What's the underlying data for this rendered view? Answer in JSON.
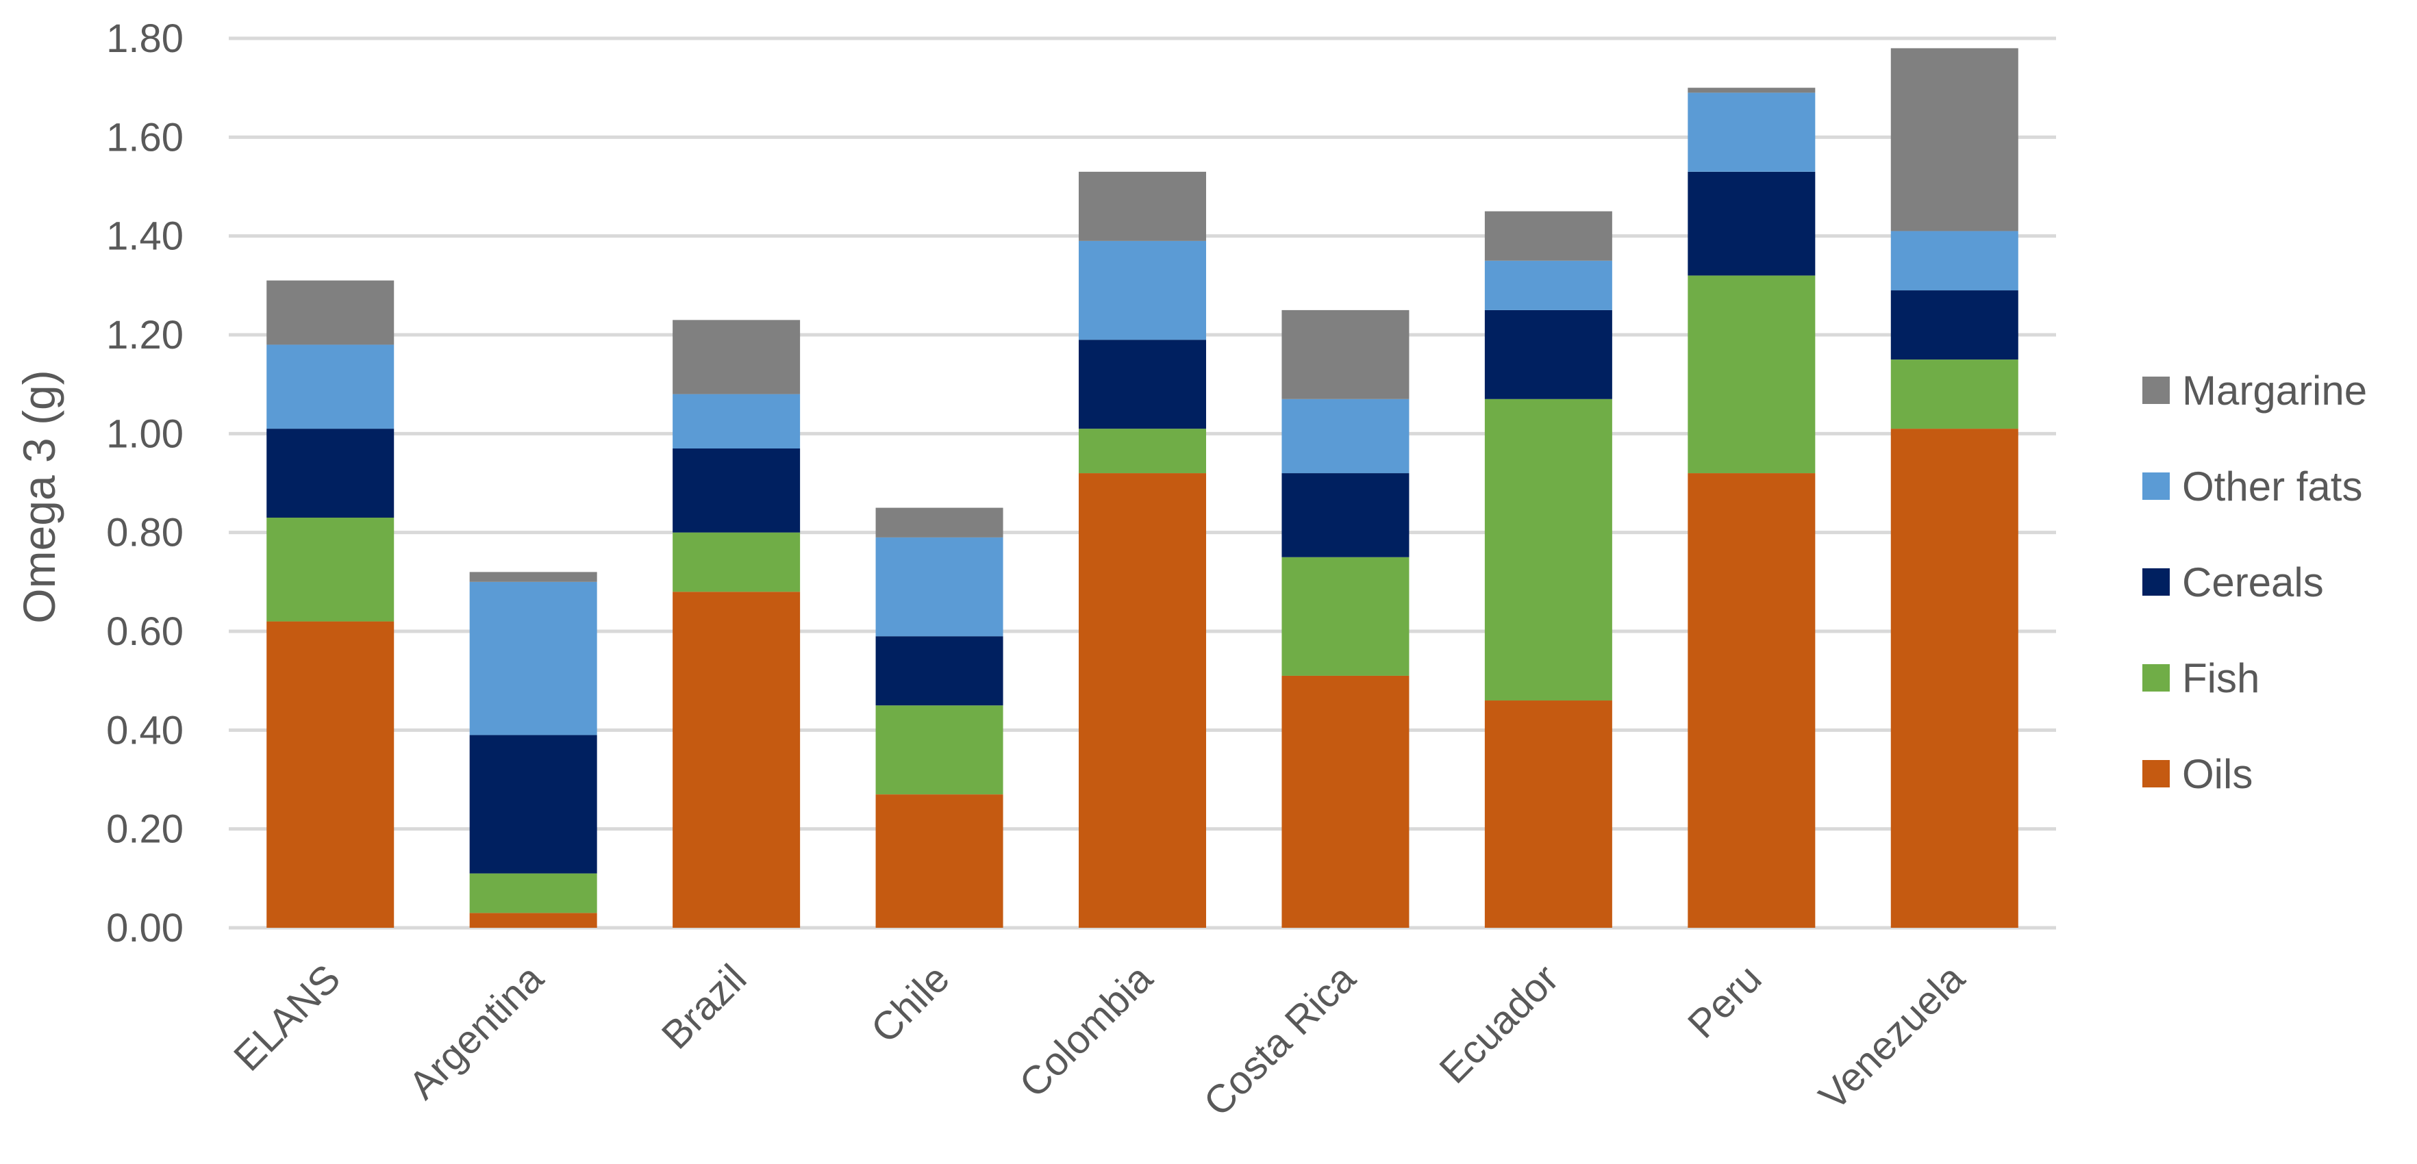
{
  "chart_data": {
    "type": "bar",
    "stacked": true,
    "title": "",
    "xlabel": "",
    "ylabel": "Omega 3 (g)",
    "ylim": [
      0,
      1.8
    ],
    "yticks": [
      "0.00",
      "0.20",
      "0.40",
      "0.60",
      "0.80",
      "1.00",
      "1.20",
      "1.40",
      "1.60",
      "1.80"
    ],
    "grid": true,
    "legend_position": "right",
    "categories": [
      "ELANS",
      "Argentina",
      "Brazil",
      "Chile",
      "Colombia",
      "Costa Rica",
      "Ecuador",
      "Peru",
      "Venezuela"
    ],
    "series": [
      {
        "name": "Oils",
        "color": "#C55A11",
        "values": [
          0.62,
          0.03,
          0.68,
          0.27,
          0.92,
          0.51,
          0.46,
          0.92,
          1.01
        ]
      },
      {
        "name": "Fish",
        "color": "#70AD47",
        "values": [
          0.21,
          0.08,
          0.12,
          0.18,
          0.09,
          0.24,
          0.61,
          0.4,
          0.14
        ]
      },
      {
        "name": "Cereals",
        "color": "#002060",
        "values": [
          0.18,
          0.28,
          0.17,
          0.14,
          0.18,
          0.17,
          0.18,
          0.21,
          0.14
        ]
      },
      {
        "name": "Other fats",
        "color": "#5B9BD5",
        "values": [
          0.17,
          0.31,
          0.11,
          0.2,
          0.2,
          0.15,
          0.1,
          0.16,
          0.12
        ]
      },
      {
        "name": "Margarine",
        "color": "#808080",
        "values": [
          0.13,
          0.02,
          0.15,
          0.06,
          0.14,
          0.18,
          0.1,
          0.01,
          0.37
        ]
      }
    ]
  }
}
